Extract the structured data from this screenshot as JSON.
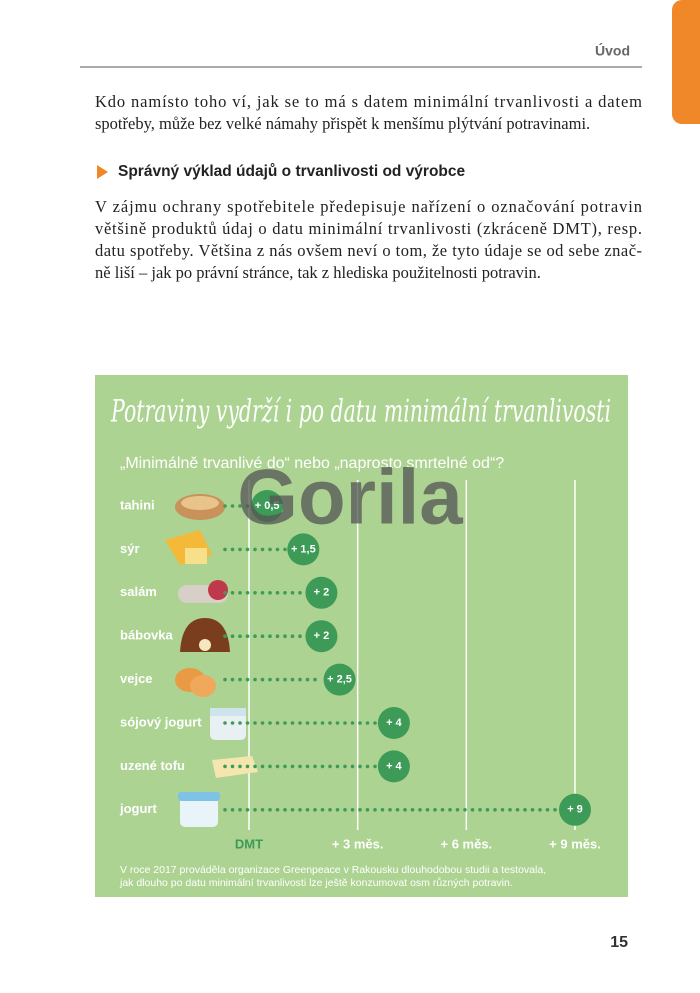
{
  "header": {
    "section": "Úvod"
  },
  "paragraph_1": [
    "Kdo namísto toho ví, jak se to má s datem minimální trvanlivosti a datem",
    "spotřeby, může bez velké námahy přispět k menšímu plýtvání potravinami."
  ],
  "heading": "Správný výklad údajů o trvanlivosti od výrobce",
  "paragraph_2": [
    "V zájmu ochrany spotřebitele předepisuje nařízení o označování potravin",
    "většině produktů údaj o datu minimální trvanlivosti (zkráceně DMT), resp.",
    "datu spotřeby. Většina z nás ovšem neví o tom, že tyto údaje se od sebe znač-",
    "ně liší – jak po právní stránce, tak z hlediska použitelnosti potravin."
  ],
  "chart_data": {
    "type": "dot",
    "title": "Potraviny vydrží i po datu minimální trvanlivosti",
    "subtitle": "„Minimálně trvanlivé do“ nebo „naprosto smrtelné od“?",
    "categories": [
      "tahini",
      "sýr",
      "salám",
      "bábovka",
      "vejce",
      "sójový jogurt",
      "uzené tofu",
      "jogurt"
    ],
    "values": [
      0.5,
      1.5,
      2,
      2,
      2.5,
      4,
      4,
      9
    ],
    "value_labels": [
      "+ 0,5",
      "+ 1,5",
      "+ 2",
      "+ 2",
      "+ 2,5",
      "+ 4",
      "+ 4",
      "+ 9"
    ],
    "color": "#3d9b57",
    "xlim": [
      0,
      9
    ],
    "xticks": [
      {
        "value": 0,
        "label": "DMT"
      },
      {
        "value": 3,
        "label": "+ 3 měs."
      },
      {
        "value": 6,
        "label": "+ 6 měs."
      },
      {
        "value": 9,
        "label": "+ 9 měs."
      }
    ],
    "grid": true,
    "note": [
      "V roce 2017 prováděla organizace Greenpeace v Rakousku dlouhodobou studii a testovala,",
      "jak dlouho po datu minimální trvanlivosti lze ještě konzumovat osm různých potravin."
    ],
    "watermark": "Gorila"
  },
  "page_number": "15"
}
